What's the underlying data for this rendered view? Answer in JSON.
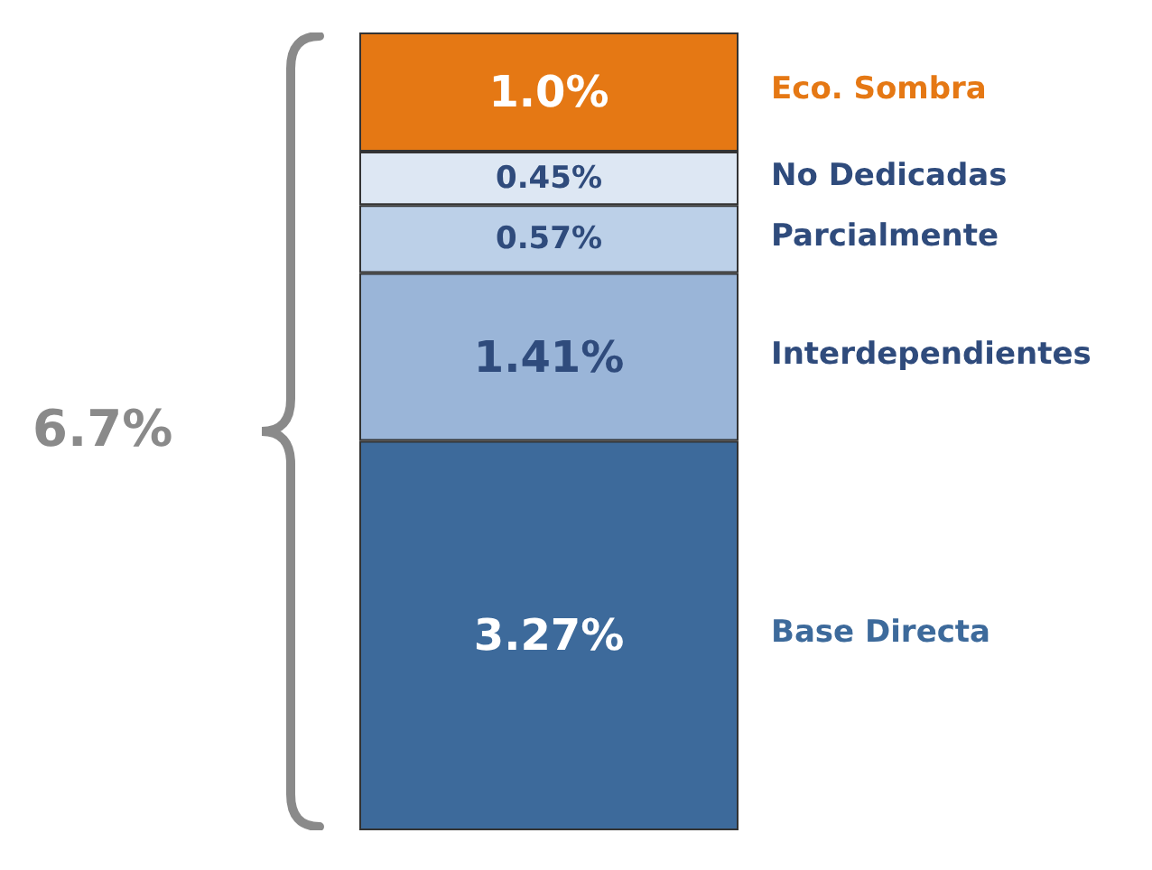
{
  "chart_data": {
    "type": "bar",
    "stacked": true,
    "categories": [
      null
    ],
    "data_labels": false,
    "tick_labels": false,
    "legend": false,
    "series": [
      {
        "name": "Base Directa",
        "color": "#3d6a9b",
        "values": [
          3.27
        ],
        "value_labels": [
          "3.27%"
        ]
      },
      {
        "name": "Interdependientes",
        "color": "#9ab5d8",
        "values": [
          1.41
        ],
        "value_labels": [
          "1.41%"
        ]
      },
      {
        "name": "Parcialmente",
        "color": "#bcd0e8",
        "values": [
          0.57
        ],
        "value_labels": [
          "0.57%"
        ]
      },
      {
        "name": "No Dedicadas",
        "color": "#dde7f3",
        "values": [
          0.45
        ],
        "value_labels": [
          "0.45%"
        ]
      },
      {
        "name": "Eco. Sombra",
        "color": "#e57814",
        "values": [
          1.0
        ],
        "value_labels": [
          "1.0%"
        ]
      }
    ],
    "annotations": [
      "6.7%"
    ]
  }
}
